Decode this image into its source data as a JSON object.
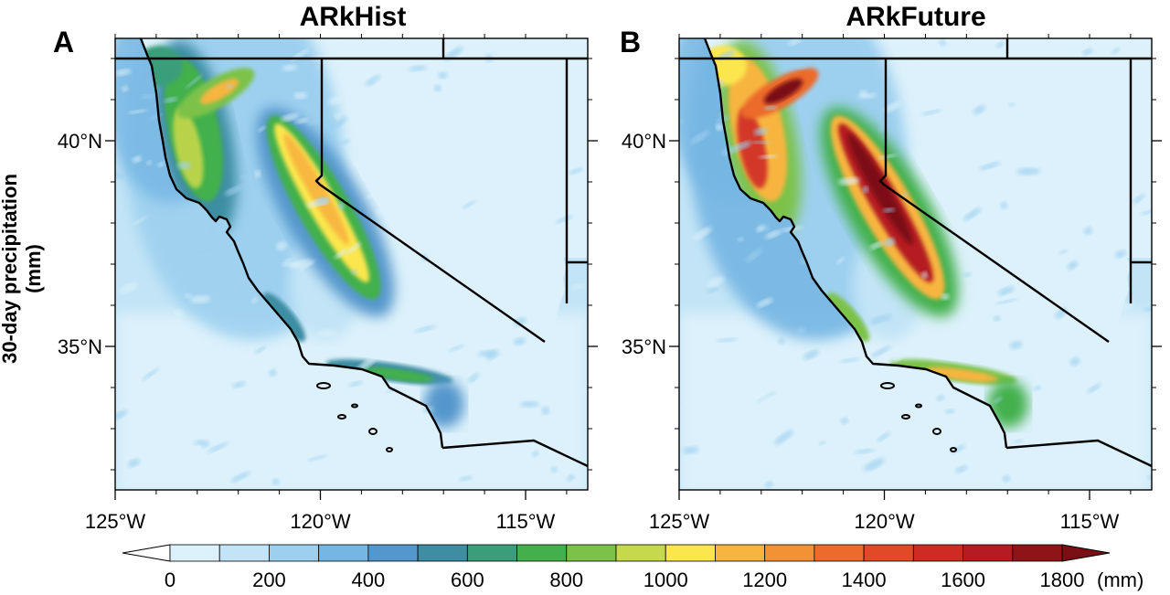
{
  "y_axis_label": "30-day precipitation (mm)",
  "panels": [
    {
      "letter": "A",
      "title": "ARkHist",
      "intensity": 1.0
    },
    {
      "letter": "B",
      "title": "ARkFuture",
      "intensity": 1.55
    }
  ],
  "lat_ticks": [
    {
      "value": 40,
      "label": "40°N"
    },
    {
      "value": 35,
      "label": "35°N"
    }
  ],
  "lon_ticks": [
    {
      "value": -125,
      "label": "125°W"
    },
    {
      "value": -120,
      "label": "120°W"
    },
    {
      "value": -115,
      "label": "115°W"
    }
  ],
  "colorbar": {
    "unit": "(mm)",
    "labels": [
      "0",
      "200",
      "400",
      "600",
      "800",
      "1000",
      "1200",
      "1400",
      "1600",
      "1800"
    ],
    "levels": [
      0,
      100,
      200,
      300,
      400,
      500,
      600,
      700,
      800,
      900,
      1000,
      1100,
      1200,
      1300,
      1400,
      1500,
      1600,
      1700,
      1800
    ],
    "colors": [
      "#ffffff",
      "#dcf1fb",
      "#c2e4f6",
      "#9dd0ef",
      "#75b6e3",
      "#5497cc",
      "#3d8da3",
      "#3a9e7a",
      "#43b04c",
      "#7cc24a",
      "#c6d84c",
      "#fbe64d",
      "#f7b53f",
      "#f29235",
      "#ec6a2c",
      "#e14a27",
      "#cf2b25",
      "#b41c22",
      "#8e1418",
      "#7a1015"
    ]
  }
}
